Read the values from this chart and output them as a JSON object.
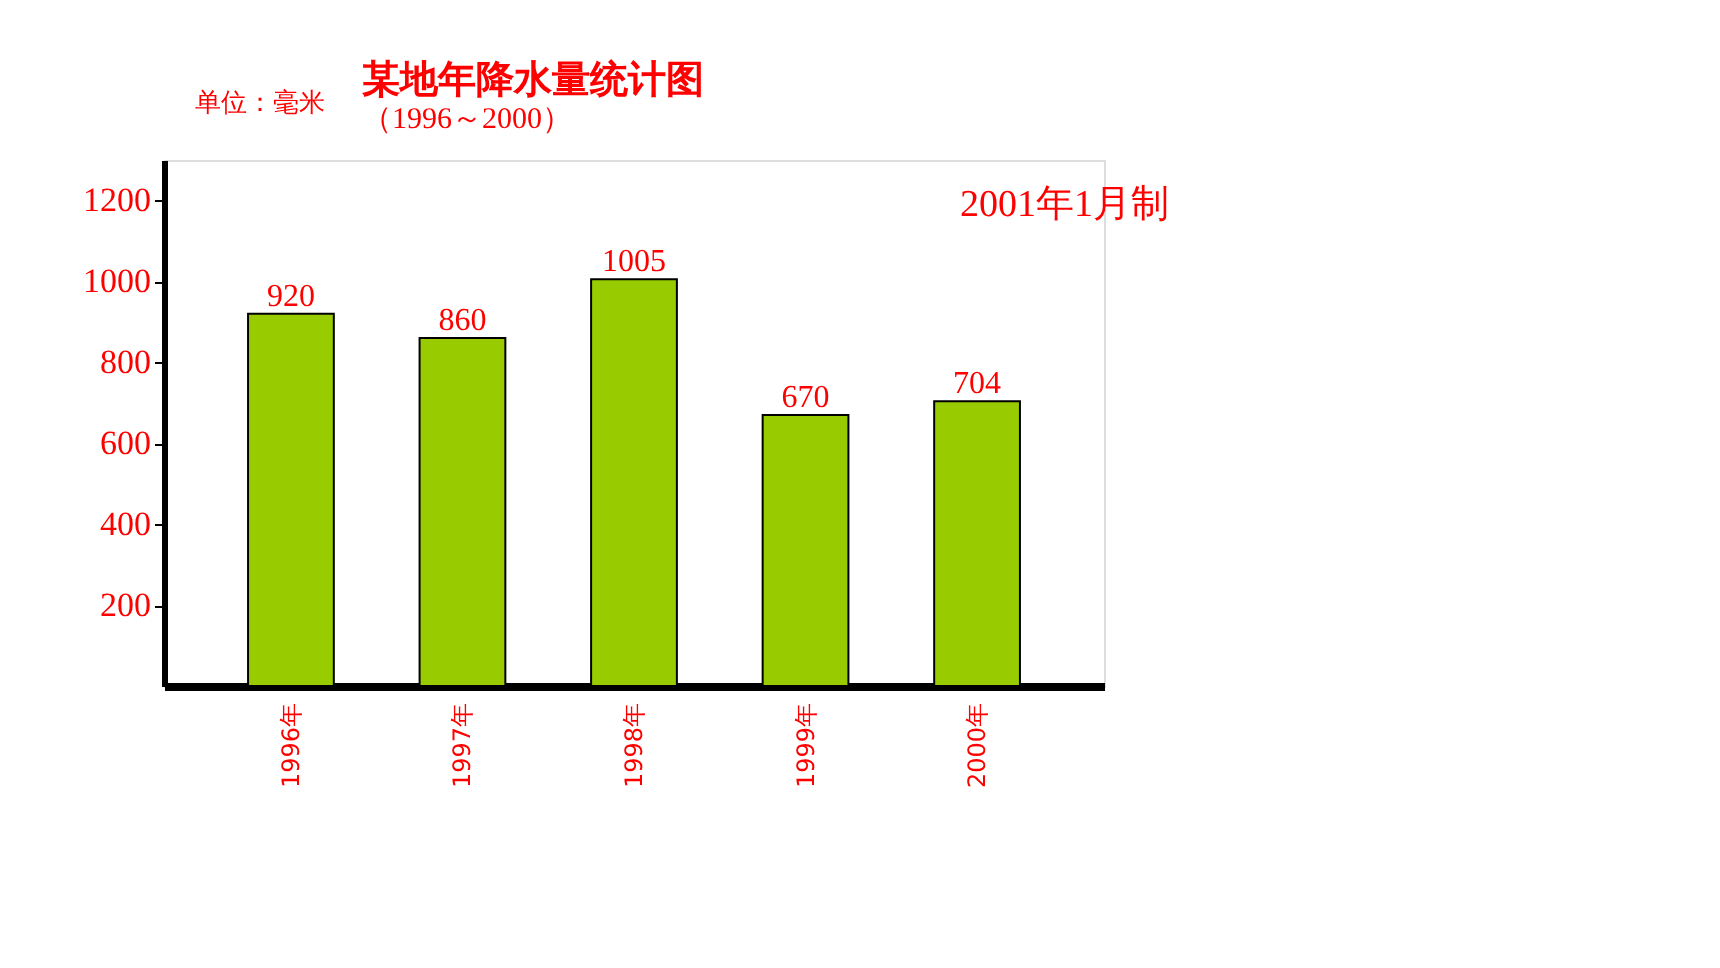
{
  "chart_data": {
    "type": "bar",
    "title": "某地年降水量统计图",
    "subtitle": "（1996～2000）",
    "ylabel": "单位：毫米",
    "annotations": [
      "2001年1月制"
    ],
    "categories": [
      "1996年",
      "1997年",
      "1998年",
      "1999年",
      "2000年"
    ],
    "values": [
      920,
      860,
      1005,
      670,
      704
    ],
    "color": "#99cc00",
    "ylim": [
      0,
      1300
    ],
    "yticks": [
      200,
      400,
      600,
      800,
      1000,
      1200
    ],
    "grid": false,
    "data_labels": true
  }
}
